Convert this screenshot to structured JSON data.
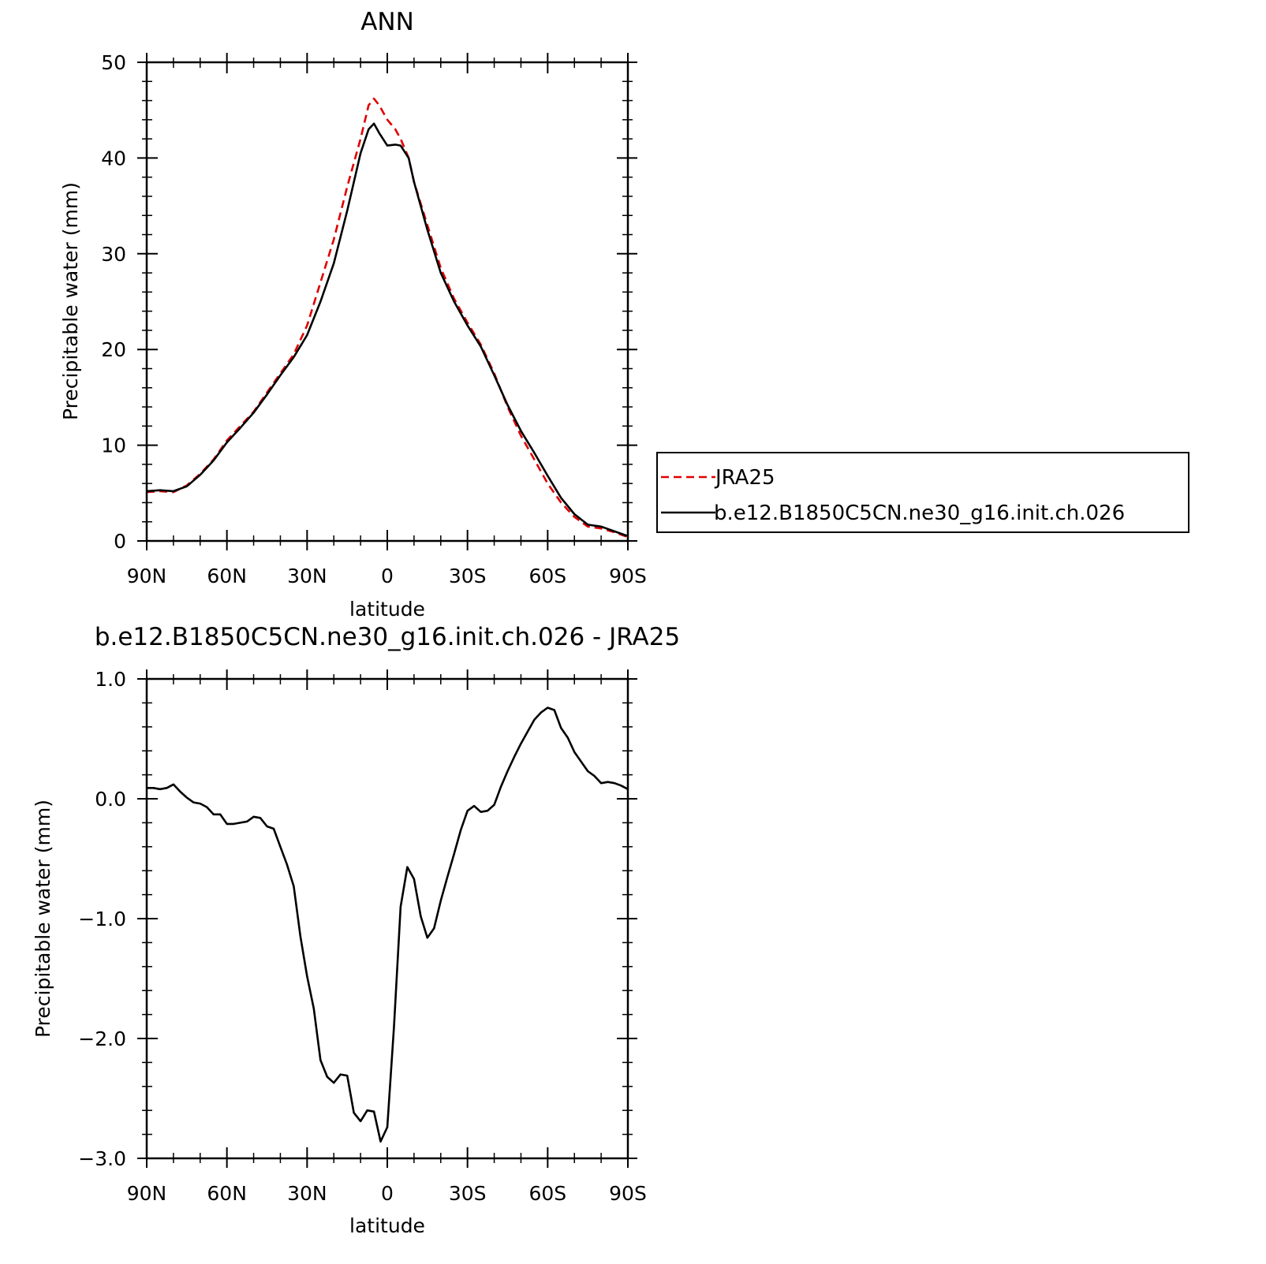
{
  "chart_data": [
    {
      "type": "line",
      "title": "ANN",
      "xlabel": "latitude",
      "ylabel": "Precipitable water (mm)",
      "ylim": [
        0,
        50
      ],
      "yticks": [
        "0",
        "10",
        "20",
        "30",
        "40",
        "50"
      ],
      "xlim": [
        90,
        -90
      ],
      "xticks": [
        "90N",
        "60N",
        "30N",
        "0",
        "30S",
        "60S",
        "90S"
      ],
      "legend": {
        "position": "right",
        "entries": [
          "JRA25",
          "b.e12.B1850C5CN.ne30_g16.init.ch.026"
        ]
      },
      "series": [
        {
          "name": "JRA25",
          "color": "#e00000",
          "dash": "dashed",
          "x": [
            90,
            85,
            80,
            75,
            70,
            65,
            60,
            55,
            50,
            45,
            40,
            35,
            30,
            25,
            20,
            15,
            10,
            7,
            5,
            3,
            0,
            -3,
            -5,
            -8,
            -10,
            -15,
            -20,
            -25,
            -30,
            -35,
            -40,
            -45,
            -50,
            -55,
            -60,
            -65,
            -70,
            -75,
            -80,
            -85,
            -90
          ],
          "values": [
            5.1,
            5.2,
            5.1,
            5.8,
            7.0,
            8.5,
            10.5,
            12.0,
            13.5,
            15.5,
            17.5,
            19.5,
            22.5,
            27.0,
            31.5,
            37.0,
            42.0,
            45.5,
            46.2,
            45.5,
            44.0,
            43.0,
            42.0,
            40.0,
            37.5,
            33.0,
            28.5,
            25.3,
            22.8,
            20.5,
            17.5,
            14.0,
            11.0,
            8.5,
            6.0,
            4.0,
            2.5,
            1.5,
            1.3,
            0.9,
            0.4
          ]
        },
        {
          "name": "b.e12.B1850C5CN.ne30_g16.init.ch.026",
          "color": "#000000",
          "dash": "solid",
          "x": [
            90,
            85,
            80,
            75,
            70,
            65,
            60,
            55,
            50,
            45,
            40,
            35,
            30,
            25,
            20,
            15,
            10,
            7,
            5,
            3,
            0,
            -3,
            -5,
            -8,
            -10,
            -15,
            -20,
            -25,
            -30,
            -35,
            -40,
            -45,
            -50,
            -55,
            -60,
            -65,
            -70,
            -75,
            -80,
            -85,
            -90
          ],
          "values": [
            5.2,
            5.3,
            5.2,
            5.7,
            6.9,
            8.4,
            10.3,
            11.8,
            13.4,
            15.3,
            17.3,
            19.2,
            21.5,
            25.0,
            29.0,
            34.5,
            40.5,
            43.0,
            43.6,
            42.6,
            41.3,
            41.4,
            41.3,
            40.0,
            37.5,
            32.5,
            28.0,
            25.0,
            22.5,
            20.3,
            17.3,
            14.2,
            11.5,
            9.2,
            6.8,
            4.5,
            2.8,
            1.7,
            1.5,
            1.0,
            0.5
          ]
        }
      ]
    },
    {
      "type": "line",
      "title": "b.e12.B1850C5CN.ne30_g16.init.ch.026 - JRA25",
      "xlabel": "latitude",
      "ylabel": "Precipitable water (mm)",
      "ylim": [
        -3.0,
        1.0
      ],
      "yticks": [
        "-3.0",
        "-2.0",
        "-1.0",
        "0.0",
        "1.0"
      ],
      "xlim": [
        90,
        -90
      ],
      "xticks": [
        "90N",
        "60N",
        "30N",
        "0",
        "30S",
        "60S",
        "90S"
      ],
      "series": [
        {
          "color": "#000000",
          "dash": "solid",
          "x": [
            90,
            87.5,
            85,
            82.5,
            80,
            77.5,
            75,
            72.5,
            70,
            67.5,
            65,
            62.5,
            60,
            57.5,
            55,
            52.5,
            50,
            47.5,
            45,
            42.5,
            40,
            37.5,
            35,
            32.5,
            30,
            27.5,
            25,
            22.5,
            20,
            17.5,
            15,
            12.5,
            10,
            7.5,
            5,
            2.5,
            0,
            -2.5,
            -5,
            -7.5,
            -10,
            -12.5,
            -15,
            -17.5,
            -20,
            -22.5,
            -25,
            -27.5,
            -30,
            -32.5,
            -35,
            -37.5,
            -40,
            -42.5,
            -45,
            -47.5,
            -50,
            -52.5,
            -55,
            -57.5,
            -60,
            -62.5,
            -65,
            -67.5,
            -70,
            -72.5,
            -75,
            -77.5,
            -80,
            -82.5,
            -85,
            -87.5,
            -90
          ],
          "values": [
            0.09,
            0.09,
            0.08,
            0.09,
            0.12,
            0.06,
            0.01,
            -0.03,
            -0.04,
            -0.07,
            -0.13,
            -0.13,
            -0.21,
            -0.21,
            -0.2,
            -0.19,
            -0.15,
            -0.16,
            -0.23,
            -0.25,
            -0.4,
            -0.55,
            -0.73,
            -1.15,
            -1.48,
            -1.75,
            -2.18,
            -2.32,
            -2.37,
            -2.3,
            -2.31,
            -2.62,
            -2.69,
            -2.6,
            -2.61,
            -2.86,
            -2.74,
            -1.9,
            -0.9,
            -0.57,
            -0.67,
            -0.98,
            -1.16,
            -1.08,
            -0.85,
            -0.65,
            -0.46,
            -0.26,
            -0.1,
            -0.06,
            -0.11,
            -0.1,
            -0.05,
            0.1,
            0.23,
            0.35,
            0.46,
            0.56,
            0.66,
            0.72,
            0.76,
            0.74,
            0.59,
            0.51,
            0.39,
            0.31,
            0.23,
            0.19,
            0.13,
            0.14,
            0.13,
            0.11,
            0.08
          ]
        }
      ]
    }
  ]
}
